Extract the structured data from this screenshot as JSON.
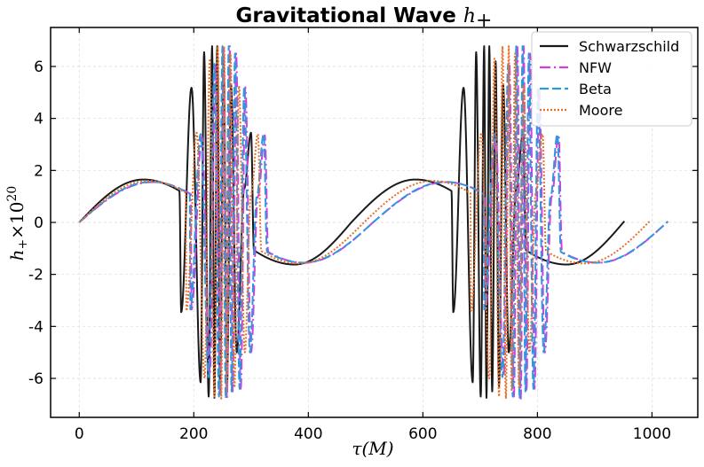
{
  "chart_data": {
    "type": "line",
    "title_text": "Gravitational Wave ",
    "title_math": "h",
    "title_math_sub": "+",
    "xlabel": "τ(M)",
    "ylabel_main": "h",
    "ylabel_sub": "+",
    "ylabel_times": "×10",
    "ylabel_exp": "20",
    "xlim": [
      -50,
      1080
    ],
    "ylim": [
      -7.5,
      7.5
    ],
    "xticks": [
      0,
      200,
      400,
      600,
      800,
      1000
    ],
    "xtick_labels": [
      "0",
      "200",
      "400",
      "600",
      "800",
      "1000"
    ],
    "yticks": [
      6,
      4,
      2,
      0,
      -2,
      -4,
      -6
    ],
    "ytick_labels": [
      "6",
      "4",
      "2",
      "0",
      "-2",
      "-4",
      "-6"
    ],
    "grid": true,
    "legend_position": "top-right",
    "series": [
      {
        "name": "Schwarzschild",
        "color": "#1a1a1a",
        "style": "solid",
        "x_end": 952,
        "period": 475,
        "peak_x": 112,
        "peak_y": 1.65,
        "trough_x": 376,
        "trough_y": -1.62,
        "burst_start": 175,
        "burst_end": 305,
        "burst_amp": 6.75,
        "burst_anchors": [
          [
            178,
            -3.45
          ],
          [
            196,
            5.18
          ],
          [
            212,
            -6.15
          ],
          [
            218,
            6.55
          ],
          [
            226,
            -6.7
          ],
          [
            232,
            6.78
          ],
          [
            236,
            -6.75
          ],
          [
            241,
            6.78
          ],
          [
            246,
            -6.5
          ],
          [
            252,
            6.2
          ],
          [
            258,
            -6.3
          ],
          [
            265,
            5.3
          ],
          [
            275,
            -5.0
          ],
          [
            288,
            1.3
          ],
          [
            300,
            3.45
          ]
        ]
      },
      {
        "name": "NFW",
        "color": "#d43ee0",
        "style": "dashdot",
        "x_end": 1028,
        "period": 513,
        "peak_x": 128,
        "peak_y": 1.55,
        "trough_x": 393,
        "trough_y": -1.55,
        "burst_start": 195,
        "burst_end": 330,
        "burst_amp": 6.75,
        "burst_anchors": [
          [
            196,
            -3.35
          ],
          [
            214,
            3.3
          ],
          [
            228,
            -5.9
          ],
          [
            238,
            6.1
          ],
          [
            246,
            -6.7
          ],
          [
            252,
            6.78
          ],
          [
            258,
            -6.78
          ],
          [
            263,
            6.78
          ],
          [
            268,
            -6.5
          ],
          [
            274,
            6.5
          ],
          [
            282,
            -6.4
          ],
          [
            290,
            5.2
          ],
          [
            300,
            -5.0
          ],
          [
            312,
            1.0
          ],
          [
            324,
            3.35
          ]
        ]
      },
      {
        "name": "Beta",
        "color": "#2f97e0",
        "style": "dashed",
        "x_end": 1028,
        "period": 513,
        "peak_x": 126,
        "peak_y": 1.56,
        "trough_x": 391,
        "trough_y": -1.55,
        "burst_start": 193,
        "burst_end": 328,
        "burst_amp": 6.75,
        "burst_anchors": [
          [
            194,
            -3.35
          ],
          [
            212,
            3.4
          ],
          [
            226,
            -5.95
          ],
          [
            236,
            6.1
          ],
          [
            244,
            -6.7
          ],
          [
            250,
            6.78
          ],
          [
            256,
            -6.78
          ],
          [
            261,
            6.78
          ],
          [
            266,
            -6.5
          ],
          [
            272,
            6.5
          ],
          [
            280,
            -6.4
          ],
          [
            288,
            5.2
          ],
          [
            298,
            -5.0
          ],
          [
            310,
            1.0
          ],
          [
            322,
            3.4
          ]
        ]
      },
      {
        "name": "Moore",
        "color": "#e8702a",
        "style": "dotted",
        "x_end": 996,
        "period": 497,
        "peak_x": 120,
        "peak_y": 1.6,
        "trough_x": 385,
        "trough_y": -1.58,
        "burst_start": 186,
        "burst_end": 318,
        "burst_amp": 6.75,
        "burst_anchors": [
          [
            187,
            -3.4
          ],
          [
            205,
            3.45
          ],
          [
            219,
            -6.0
          ],
          [
            228,
            6.3
          ],
          [
            236,
            -6.7
          ],
          [
            242,
            6.78
          ],
          [
            248,
            -6.78
          ],
          [
            253,
            6.78
          ],
          [
            258,
            -6.5
          ],
          [
            264,
            6.5
          ],
          [
            271,
            -6.35
          ],
          [
            279,
            5.25
          ],
          [
            289,
            -5.0
          ],
          [
            300,
            1.1
          ],
          [
            312,
            3.4
          ]
        ]
      }
    ]
  }
}
